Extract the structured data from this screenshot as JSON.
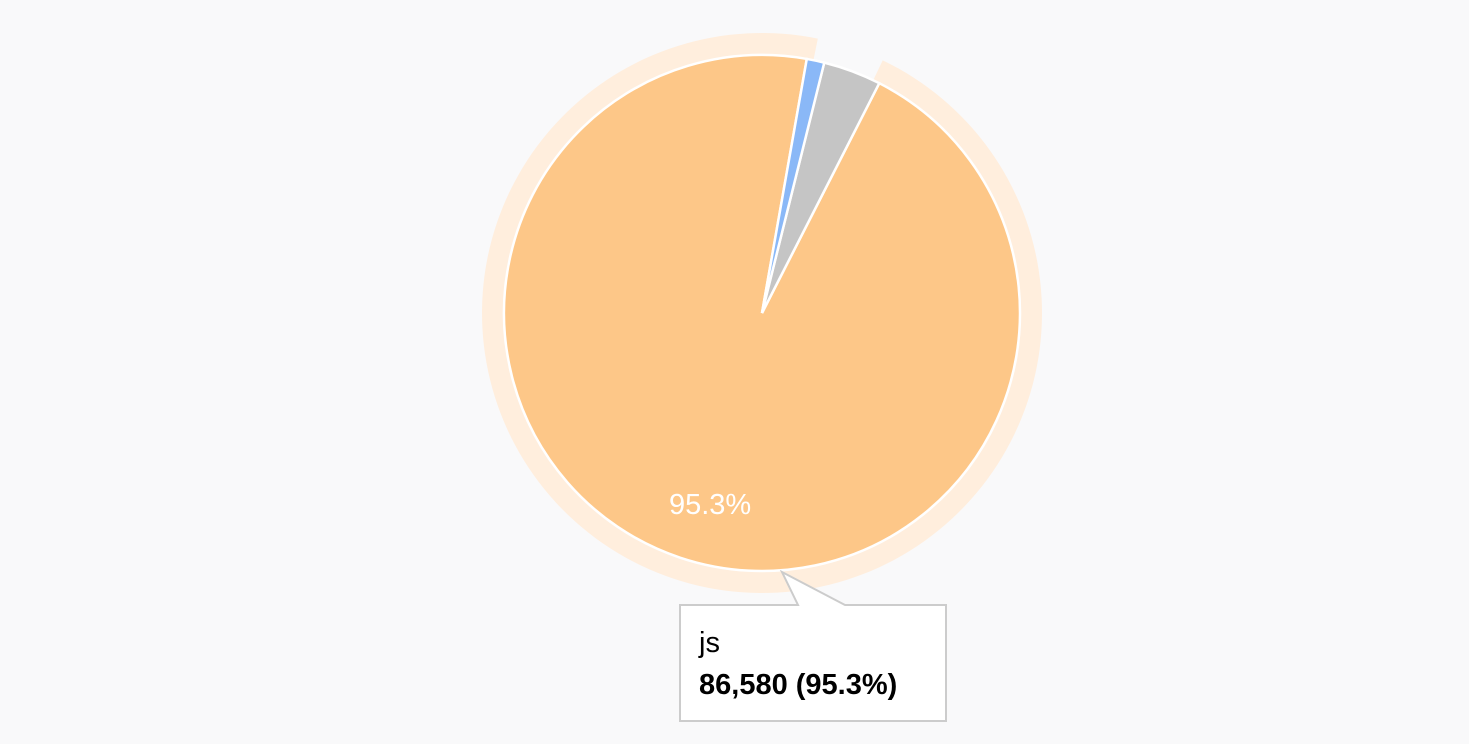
{
  "chart_data": {
    "type": "pie",
    "title": "",
    "slices": [
      {
        "name": "js",
        "value": 86580,
        "percent": 95.3,
        "color": "#fdc788"
      },
      {
        "name": "",
        "value": 3300,
        "percent": 3.6,
        "color": "#c5c5c5"
      },
      {
        "name": "",
        "value": 1000,
        "percent": 1.1,
        "color": "#8ab8f7"
      }
    ],
    "slice_labels": [
      "95.3%",
      "",
      ""
    ],
    "highlighted_slice": "js",
    "highlight_ring_color": "#ffeedd",
    "legend": "none"
  },
  "tooltip": {
    "category": "js",
    "value_text": "86,580 (95.3%)"
  },
  "colors": {
    "background": "#f9f9fa",
    "tooltip_border": "#cccccc",
    "tooltip_bg": "#ffffff"
  }
}
